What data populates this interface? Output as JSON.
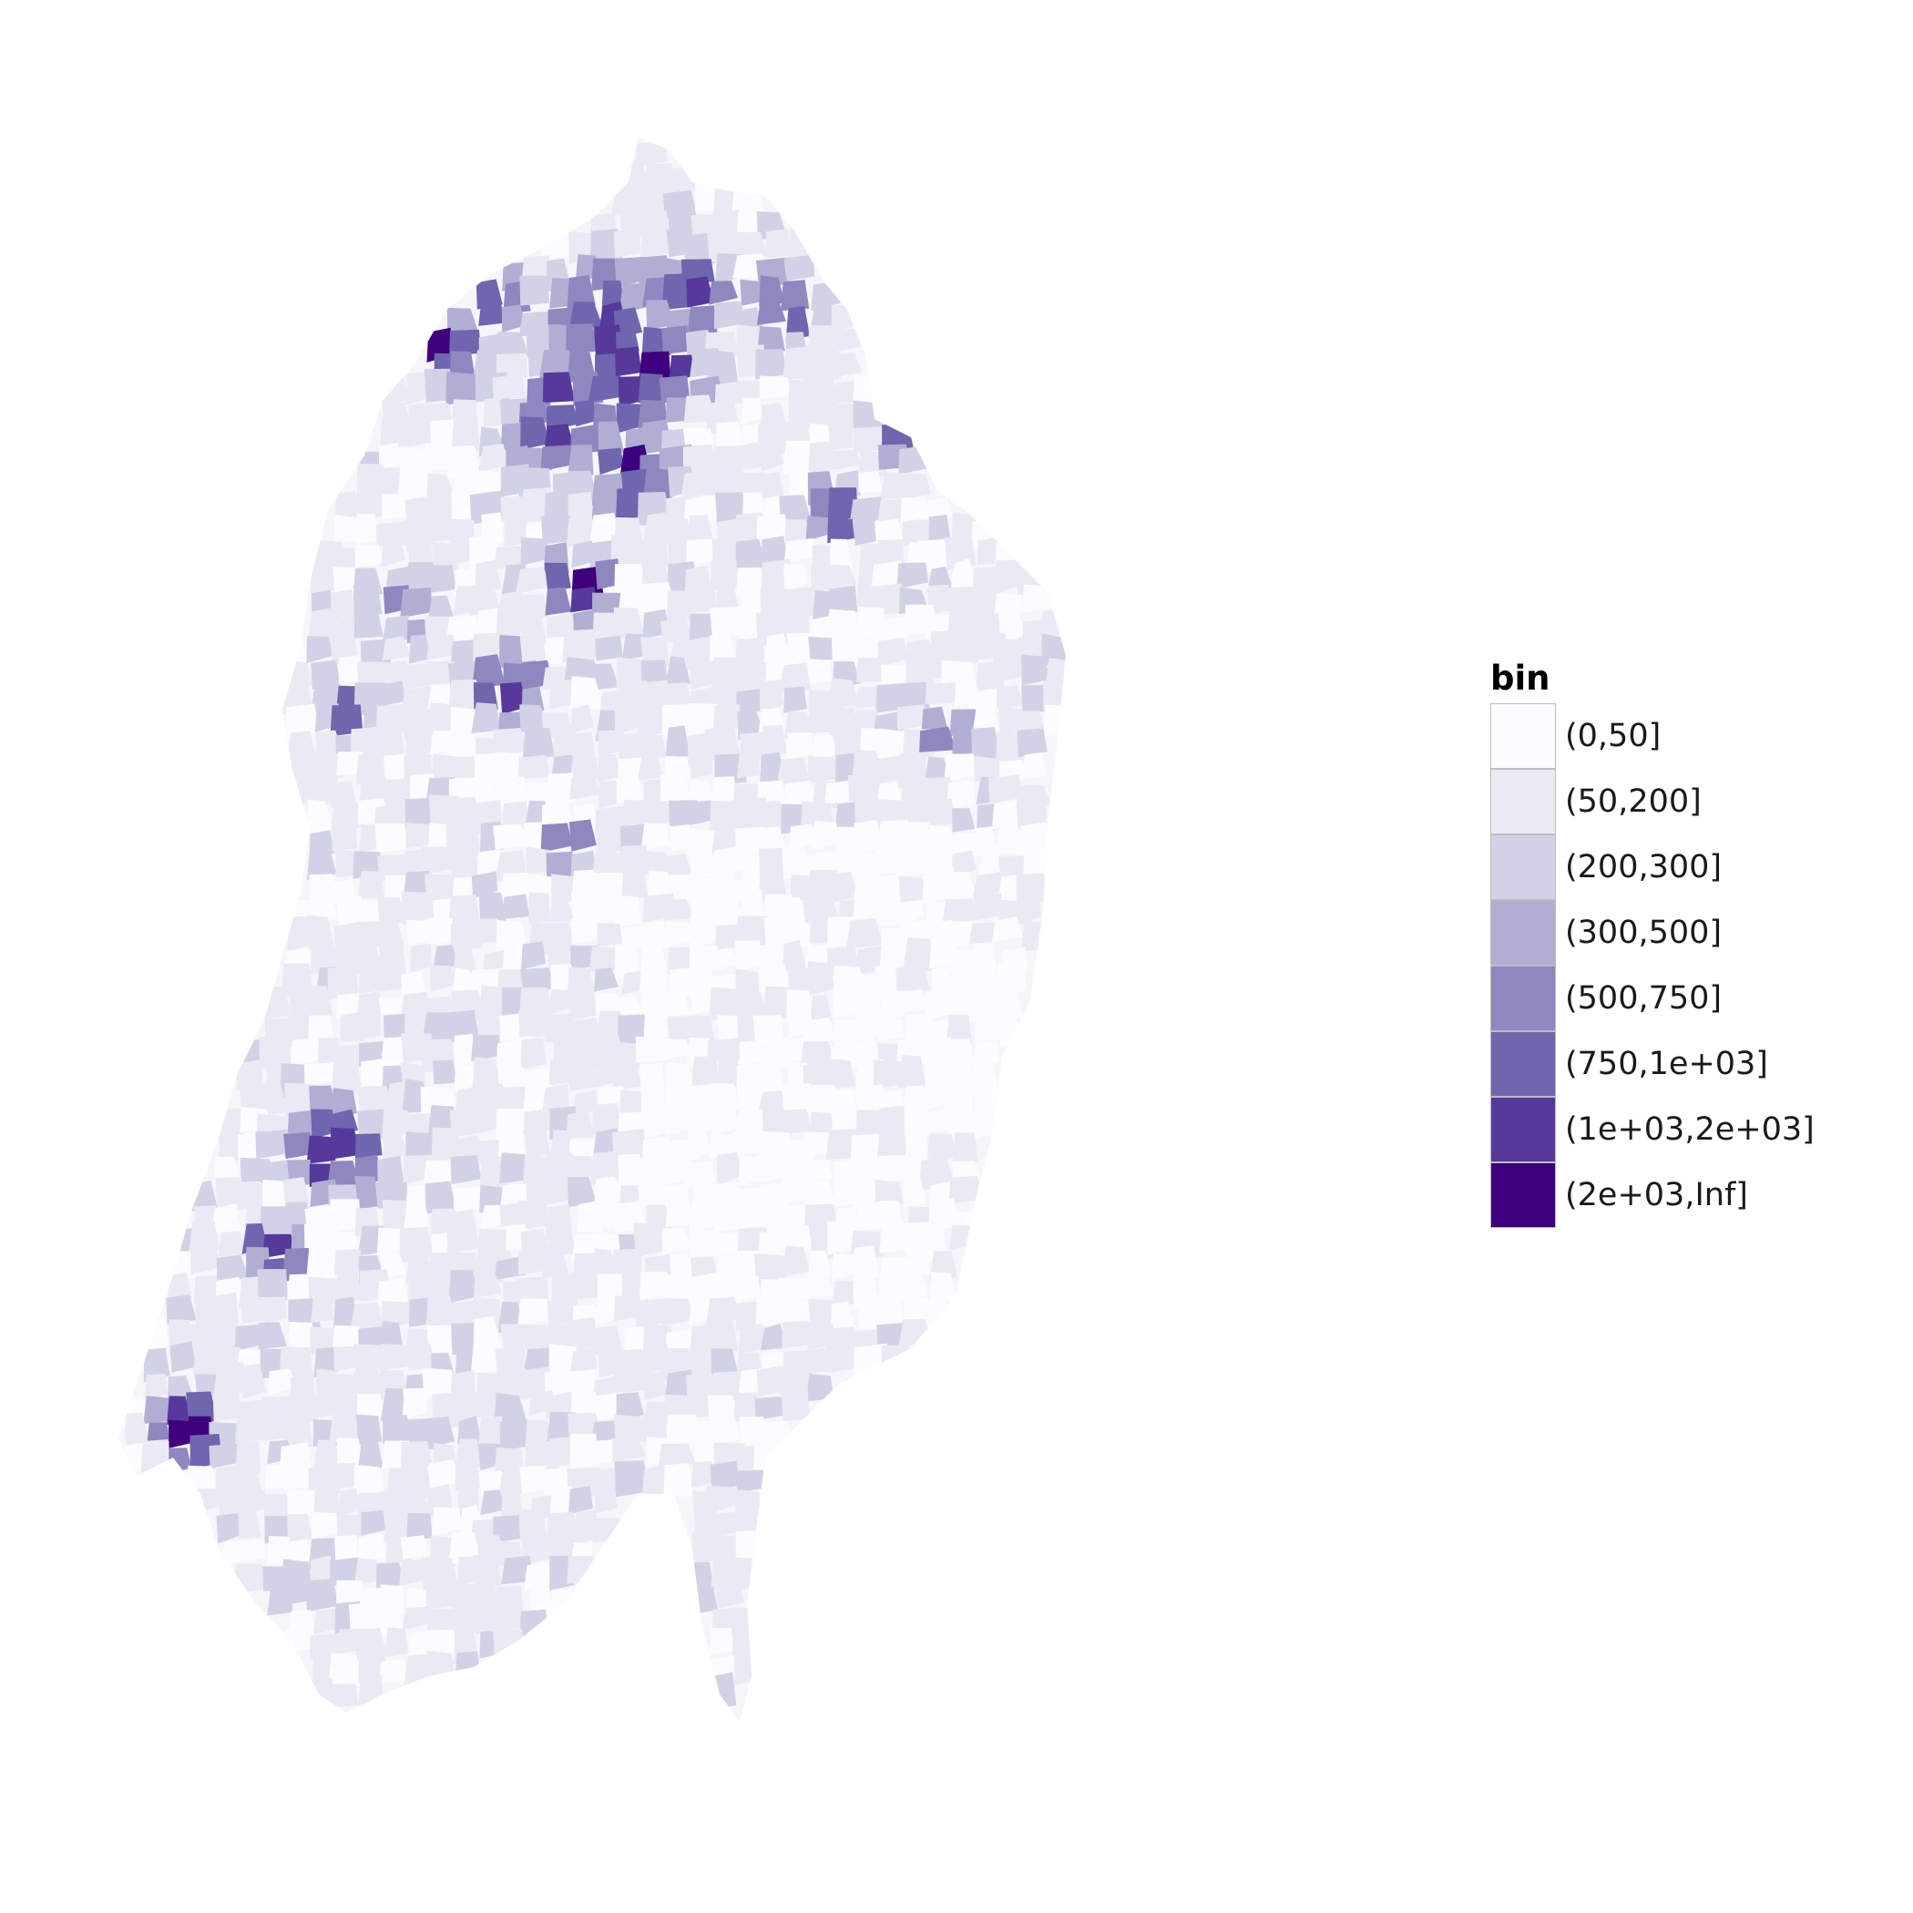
{
  "chart_data": {
    "type": "heatmap",
    "subtype": "choropleth-map",
    "region_shown": "Switzerland (municipalities)",
    "title": "",
    "legend": {
      "title": "bin",
      "placement": "right",
      "entries": [
        {
          "label": "(0,50]",
          "color": "#fcfbfd"
        },
        {
          "label": "(50,200]",
          "color": "#ebe9f3"
        },
        {
          "label": "(200,300]",
          "color": "#d2d2e7"
        },
        {
          "label": "(300,500]",
          "color": "#b1aed4"
        },
        {
          "label": "(500,750]",
          "color": "#8f87bf"
        },
        {
          "label": "(750,1e+03]",
          "color": "#6e66ae"
        },
        {
          "label": "(1e+03,2e+03]",
          "color": "#56399a"
        },
        {
          "label": "(2e+03,Inf]",
          "color": "#3f007d"
        }
      ]
    },
    "axes_shown": false,
    "grid": false
  }
}
